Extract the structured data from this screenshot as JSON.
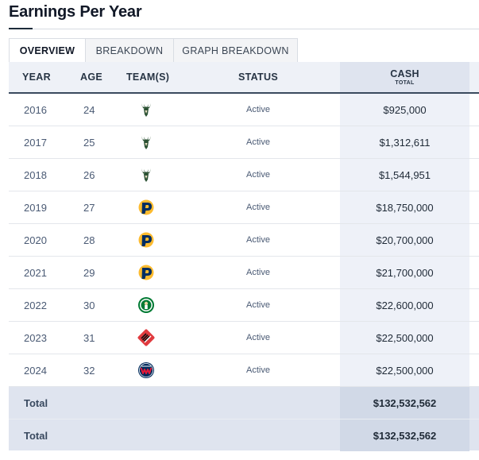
{
  "page": {
    "title": "Earnings Per Year"
  },
  "tabs": [
    {
      "label": "OVERVIEW",
      "active": true
    },
    {
      "label": "BREAKDOWN",
      "active": false
    },
    {
      "label": "GRAPH BREAKDOWN",
      "active": false
    }
  ],
  "columns": {
    "year": "YEAR",
    "age": "AGE",
    "teams": "TEAM(S)",
    "status": "STATUS",
    "cash": "CASH",
    "cash_sub": "TOTAL"
  },
  "rows": [
    {
      "year": "2016",
      "age": "24",
      "team_icon": "bucks-logo-icon",
      "status": "Active",
      "cash": "$925,000"
    },
    {
      "year": "2017",
      "age": "25",
      "team_icon": "bucks-logo-icon",
      "status": "Active",
      "cash": "$1,312,611"
    },
    {
      "year": "2018",
      "age": "26",
      "team_icon": "bucks-logo-icon",
      "status": "Active",
      "cash": "$1,544,951"
    },
    {
      "year": "2019",
      "age": "27",
      "team_icon": "pacers-logo-icon",
      "status": "Active",
      "cash": "$18,750,000"
    },
    {
      "year": "2020",
      "age": "28",
      "team_icon": "pacers-logo-icon",
      "status": "Active",
      "cash": "$20,700,000"
    },
    {
      "year": "2021",
      "age": "29",
      "team_icon": "pacers-logo-icon",
      "status": "Active",
      "cash": "$21,700,000"
    },
    {
      "year": "2022",
      "age": "30",
      "team_icon": "celtics-logo-icon",
      "status": "Active",
      "cash": "$22,600,000"
    },
    {
      "year": "2023",
      "age": "31",
      "team_icon": "blazers-logo-icon",
      "status": "Active",
      "cash": "$22,500,000"
    },
    {
      "year": "2024",
      "age": "32",
      "team_icon": "wizards-logo-icon",
      "status": "Active",
      "cash": "$22,500,000"
    }
  ],
  "totals": [
    {
      "label": "Total",
      "cash": "$132,532,562"
    },
    {
      "label": "Total",
      "cash": "$132,532,562"
    }
  ],
  "colors": {
    "bucks": "#2c5234",
    "pacers_navy": "#002d62",
    "pacers_gold": "#fdbb30",
    "celtics": "#007a33",
    "blazers": "#e03a3e",
    "wizards_navy": "#002b5c",
    "wizards_red": "#e31837"
  }
}
